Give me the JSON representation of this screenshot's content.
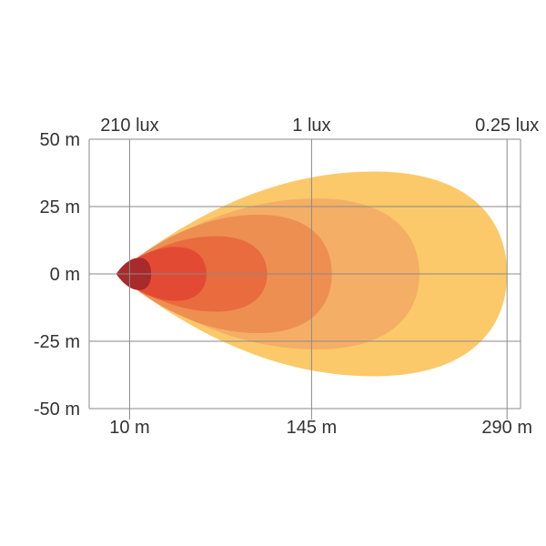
{
  "chart_data": {
    "type": "area",
    "x_ticks": [
      {
        "value": 10,
        "label": "10 m"
      },
      {
        "value": 145,
        "label": "145 m"
      },
      {
        "value": 290,
        "label": "290 m"
      }
    ],
    "y_ticks": [
      {
        "value": 50,
        "label": "50 m"
      },
      {
        "value": 25,
        "label": "25 m"
      },
      {
        "value": 0,
        "label": "0 m"
      },
      {
        "value": -25,
        "label": "-25 m"
      },
      {
        "value": -50,
        "label": "-50 m"
      }
    ],
    "lux_labels": [
      {
        "x": 10,
        "label": "210 lux"
      },
      {
        "x": 145,
        "label": "1 lux"
      },
      {
        "x": 290,
        "label": "0.25 lux"
      }
    ],
    "xlim": [
      -20,
      300
    ],
    "ylim": [
      -50,
      50
    ],
    "grid": true,
    "series": [
      {
        "reach": 290,
        "half_width": 38,
        "color": "#fbc96a"
      },
      {
        "reach": 225,
        "half_width": 28,
        "color": "#f5ae66"
      },
      {
        "reach": 160,
        "half_width": 22,
        "color": "#ee8f52"
      },
      {
        "reach": 112,
        "half_width": 14,
        "color": "#e86c3e"
      },
      {
        "reach": 67,
        "half_width": 10,
        "color": "#e34a34"
      },
      {
        "reach": 26,
        "half_width": 6,
        "color": "#a82a2a"
      }
    ]
  }
}
